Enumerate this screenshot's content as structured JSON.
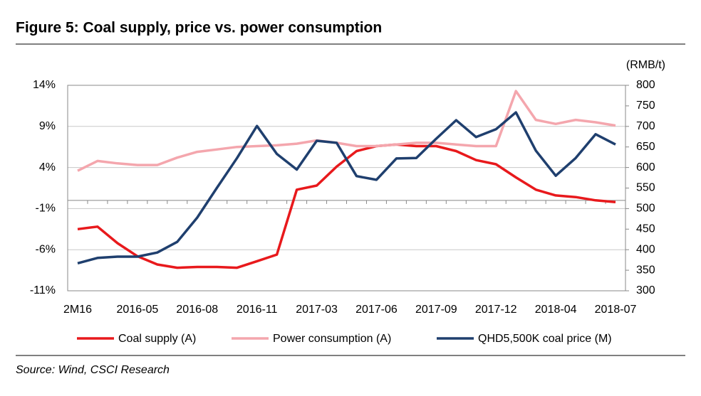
{
  "chart_data": {
    "type": "line",
    "title": "Figure 5: Coal supply, price vs. power consumption",
    "y2_label": "(RMB/t)",
    "source": "Source: Wind, CSCI Research",
    "categories": [
      "2M16",
      null,
      null,
      "2016-05",
      null,
      null,
      "2016-08",
      null,
      null,
      "2016-11",
      null,
      null,
      "2017-03",
      null,
      null,
      "2017-06",
      null,
      null,
      "2017-09",
      null,
      null,
      "2017-12",
      null,
      null,
      "2018-04",
      null,
      null,
      "2018-07"
    ],
    "ylim": [
      -11,
      14
    ],
    "yticks": [
      {
        "value": -11,
        "label": "-11%"
      },
      {
        "value": -6,
        "label": "-6%"
      },
      {
        "value": -1,
        "label": "-1%"
      },
      {
        "value": 4,
        "label": "4%"
      },
      {
        "value": 9,
        "label": "9%"
      },
      {
        "value": 14,
        "label": "14%"
      }
    ],
    "y2lim": [
      300,
      800
    ],
    "y2ticks": [
      300,
      350,
      400,
      450,
      500,
      550,
      600,
      650,
      700,
      750,
      800
    ],
    "grid": true,
    "legend": "bottom",
    "series": [
      {
        "name": "Coal supply (A)",
        "color": "#e8191c",
        "values": [
          -3.5,
          -3.2,
          -5.2,
          -6.8,
          -7.8,
          -8.2,
          -8.1,
          -8.1,
          -8.2,
          -7.4,
          -6.6,
          1.3,
          1.8,
          4.1,
          6.0,
          6.6,
          6.8,
          6.6,
          6.6,
          6.0,
          4.9,
          4.4,
          2.8,
          1.3,
          0.6,
          0.4,
          0.0,
          -0.2
        ]
      },
      {
        "name": "Power consumption (A)",
        "color": "#f4a6ad",
        "values": [
          3.6,
          4.8,
          4.5,
          4.3,
          4.3,
          5.2,
          5.9,
          6.2,
          6.5,
          6.6,
          6.7,
          6.9,
          7.3,
          7.0,
          6.6,
          6.6,
          6.8,
          7.0,
          7.0,
          6.8,
          6.6,
          6.6,
          13.3,
          9.8,
          9.3,
          9.8,
          9.5,
          9.1
        ]
      },
      {
        "name": "QHD5,500K coal price (M)",
        "color": "#1f3f6e",
        "axis": "y2",
        "values": [
          367,
          380,
          383,
          383,
          393,
          419,
          478,
          551,
          623,
          701,
          633,
          595,
          665,
          660,
          579,
          570,
          622,
          623,
          670,
          715,
          674,
          693,
          734,
          641,
          580,
          623,
          681,
          656
        ]
      }
    ]
  }
}
